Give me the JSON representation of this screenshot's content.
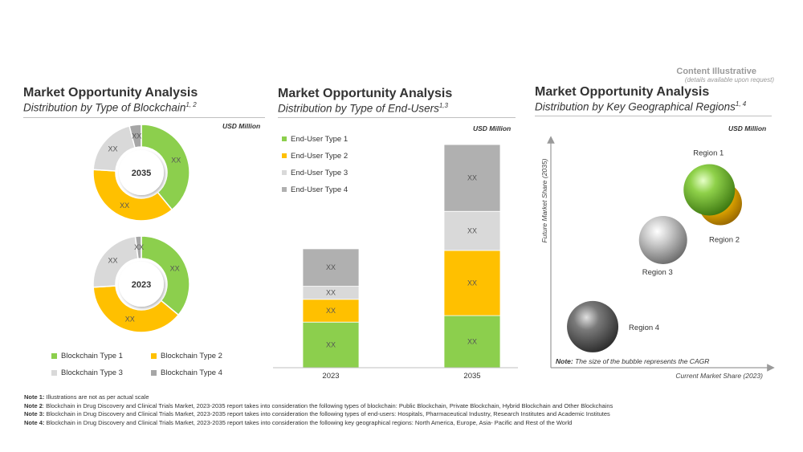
{
  "watermark": {
    "title": "Content Illustrative",
    "subtitle": "(details available upon request)"
  },
  "panels": [
    {
      "title": "Market Opportunity Analysis",
      "subtitle": "Distribution by Type of Blockchain",
      "sup": "1, 2",
      "unit": "USD Million"
    },
    {
      "title": "Market Opportunity Analysis",
      "subtitle": "Distribution by Type of End-Users",
      "sup": "1,3",
      "unit": "USD Million"
    },
    {
      "title": "Market Opportunity Analysis",
      "subtitle": "Distribution by Key Geographical Regions",
      "sup": "1, 4",
      "unit": "USD Million"
    }
  ],
  "colors": {
    "green": "#8ccf4d",
    "yellow": "#ffc000",
    "light_gray": "#d9d9d9",
    "dark_gray": "#a6a6a6",
    "bar_dark_gray": "#b0b0b0"
  },
  "chart_data": [
    {
      "type": "pie",
      "variant": "donut",
      "label": "2035",
      "slices": [
        {
          "name": "Blockchain Type 1",
          "value": 39,
          "label": "XX"
        },
        {
          "name": "Blockchain Type 2",
          "value": 37,
          "label": "XX"
        },
        {
          "name": "Blockchain Type 3",
          "value": 20,
          "label": "XX"
        },
        {
          "name": "Blockchain Type 4",
          "value": 4,
          "label": "XX"
        }
      ]
    },
    {
      "type": "pie",
      "variant": "donut",
      "label": "2023",
      "slices": [
        {
          "name": "Blockchain Type 1",
          "value": 36,
          "label": "XX"
        },
        {
          "name": "Blockchain Type 2",
          "value": 38,
          "label": "XX"
        },
        {
          "name": "Blockchain Type 3",
          "value": 24,
          "label": "XX"
        },
        {
          "name": "Blockchain Type 4",
          "value": 2,
          "label": "XX"
        }
      ],
      "legend": [
        "Blockchain Type 1",
        "Blockchain Type 2",
        "Blockchain Type 3",
        "Blockchain Type 4"
      ]
    },
    {
      "type": "bar",
      "stacked": true,
      "categories": [
        "2023",
        "2035"
      ],
      "ylim": [
        0,
        280
      ],
      "series": [
        {
          "name": "End-User Type 1",
          "values": [
            56,
            64
          ],
          "label": "XX"
        },
        {
          "name": "End-User Type 2",
          "values": [
            28,
            80
          ],
          "label": "XX"
        },
        {
          "name": "End-User Type 3",
          "values": [
            16,
            48
          ],
          "label": "XX"
        },
        {
          "name": "End-User Type 4",
          "values": [
            46,
            82
          ],
          "label": "XX"
        }
      ]
    },
    {
      "type": "scatter",
      "variant": "bubble",
      "xlabel": "Current Market Share (2023)",
      "ylabel": "Future Market Share (2035)",
      "xlim": [
        0,
        100
      ],
      "ylim": [
        0,
        100
      ],
      "note_label": "Note:",
      "note_text": "The size of the bubble represents the CAGR",
      "points": [
        {
          "name": "Region 1",
          "x": 72,
          "y": 78,
          "size": 32,
          "color": "green"
        },
        {
          "name": "Region 2",
          "x": 77,
          "y": 72,
          "size": 27,
          "color": "yellow"
        },
        {
          "name": "Region 3",
          "x": 51,
          "y": 56,
          "size": 30,
          "color": "light_gray"
        },
        {
          "name": "Region 4",
          "x": 19,
          "y": 18,
          "size": 32,
          "color": "dark_gray"
        }
      ]
    }
  ],
  "notes": [
    {
      "label": "Note 1:",
      "text": "Illustrations are not as per actual scale"
    },
    {
      "label": "Note 2",
      "text": ": Blockchain in Drug Discovery and Clinical Trials Market, 2023-2035 report takes into consideration the following types of blockchain: Public Blockchain, Private Blockchain, Hybrid Blockchain and Other Blockchains"
    },
    {
      "label": "Note 3:",
      "text": "Blockchain in Drug Discovery and Clinical Trials Market, 2023-2035 report takes into consideration the following types of end-users: Hospitals, Pharmaceutical Industry, Research Institutes and Academic Institutes"
    },
    {
      "label": "Note 4:",
      "text": "Blockchain in Drug Discovery and Clinical Trials Market, 2023-2035 report takes into consideration the following key geographical regions: North America, Europe, Asia- Pacific and Rest of the World"
    }
  ]
}
